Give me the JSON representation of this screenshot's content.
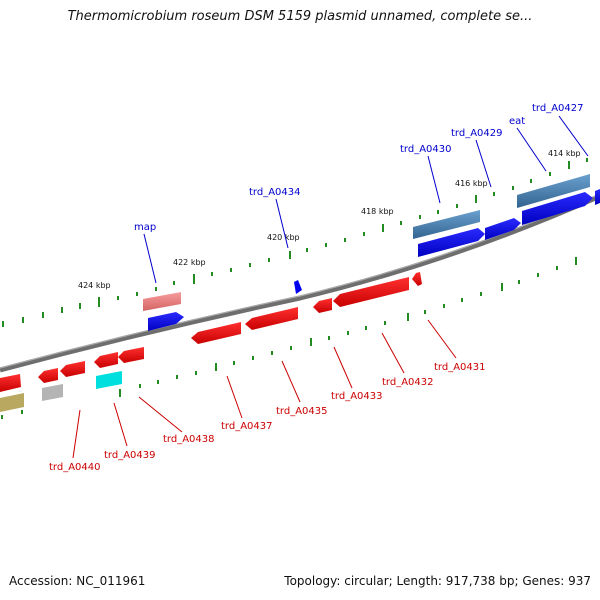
{
  "title": "Thermomicrobium roseum DSM 5159 plasmid unnamed, complete se...",
  "footer": {
    "accession": "Accession: NC_011961",
    "topology": "Topology: circular; Length: 917,738 bp; Genes: 937"
  },
  "scale_labels": [
    "424 kbp",
    "422 kbp",
    "420 kbp",
    "418 kbp",
    "416 kbp",
    "414 kbp"
  ],
  "genes_top": [
    "map",
    "trd_A0434",
    "trd_A0430",
    "trd_A0429",
    "eat",
    "trd_A0427"
  ],
  "genes_bottom": [
    "trd_A0440",
    "trd_A0439",
    "trd_A0438",
    "trd_A0437",
    "trd_A0435",
    "trd_A0433",
    "trd_A0432",
    "trd_A0431"
  ],
  "colors": {
    "forward_cds": "#0000ee",
    "reverse_cds": "#ee0000",
    "forward_cog": "#4682b4",
    "reverse_cog": "#f08080",
    "backbone": "#808080",
    "ticks": "#228B22"
  }
}
